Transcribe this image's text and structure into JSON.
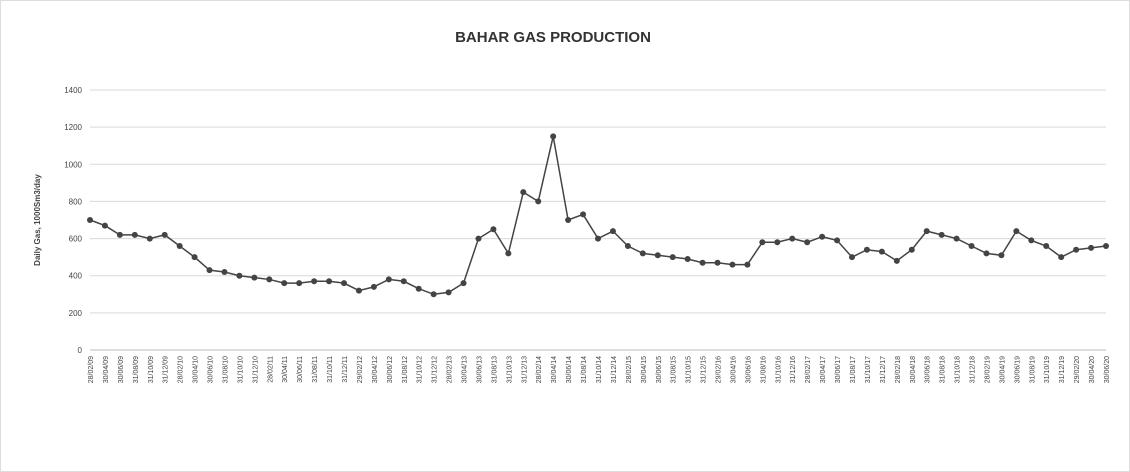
{
  "chart_data": {
    "type": "line",
    "title": "BAHAR GAS PRODUCTION",
    "y_label": "Daily Gas, 1000Sm3/day",
    "categories": [
      "28/02/09",
      "30/04/09",
      "30/06/09",
      "31/08/09",
      "31/10/09",
      "31/12/09",
      "28/02/10",
      "30/04/10",
      "30/06/10",
      "31/08/10",
      "31/10/10",
      "31/12/10",
      "28/02/11",
      "30/04/11",
      "30/06/11",
      "31/08/11",
      "31/10/11",
      "31/12/11",
      "29/02/12",
      "30/04/12",
      "30/06/12",
      "31/08/12",
      "31/10/12",
      "31/12/12",
      "28/02/13",
      "30/04/13",
      "30/06/13",
      "31/08/13",
      "31/10/13",
      "31/12/13",
      "28/02/14",
      "30/04/14",
      "30/06/14",
      "31/08/14",
      "31/10/14",
      "31/12/14",
      "28/02/15",
      "30/04/15",
      "30/06/15",
      "31/08/15",
      "31/10/15",
      "31/12/15",
      "29/02/16",
      "30/04/16",
      "30/06/16",
      "31/08/16",
      "31/10/16",
      "31/12/16",
      "28/02/17",
      "30/04/17",
      "30/06/17",
      "31/08/17",
      "31/10/17",
      "31/12/17",
      "28/02/18",
      "30/04/18",
      "30/06/18",
      "31/08/18",
      "31/10/18",
      "31/12/18",
      "28/02/19",
      "30/04/19",
      "30/06/19",
      "31/08/19",
      "31/10/19",
      "31/12/19",
      "29/02/20",
      "30/04/20",
      "30/06/20"
    ],
    "values": [
      700,
      670,
      620,
      620,
      600,
      620,
      560,
      500,
      430,
      420,
      400,
      390,
      380,
      360,
      360,
      370,
      370,
      360,
      320,
      340,
      380,
      370,
      330,
      300,
      310,
      360,
      600,
      650,
      520,
      850,
      800,
      1150,
      700,
      730,
      600,
      640,
      560,
      520,
      510,
      500,
      490,
      470,
      470,
      460,
      460,
      580,
      580,
      600,
      580,
      610,
      590,
      500,
      540,
      530,
      480,
      540,
      640,
      620,
      600,
      560,
      520,
      510,
      640,
      590,
      560,
      500,
      540,
      550,
      560
    ],
    "color": "#444444",
    "ylim": [
      0,
      1400
    ],
    "yticks": [
      0,
      200,
      400,
      600,
      800,
      1000,
      1200,
      1400
    ],
    "grid": true
  }
}
